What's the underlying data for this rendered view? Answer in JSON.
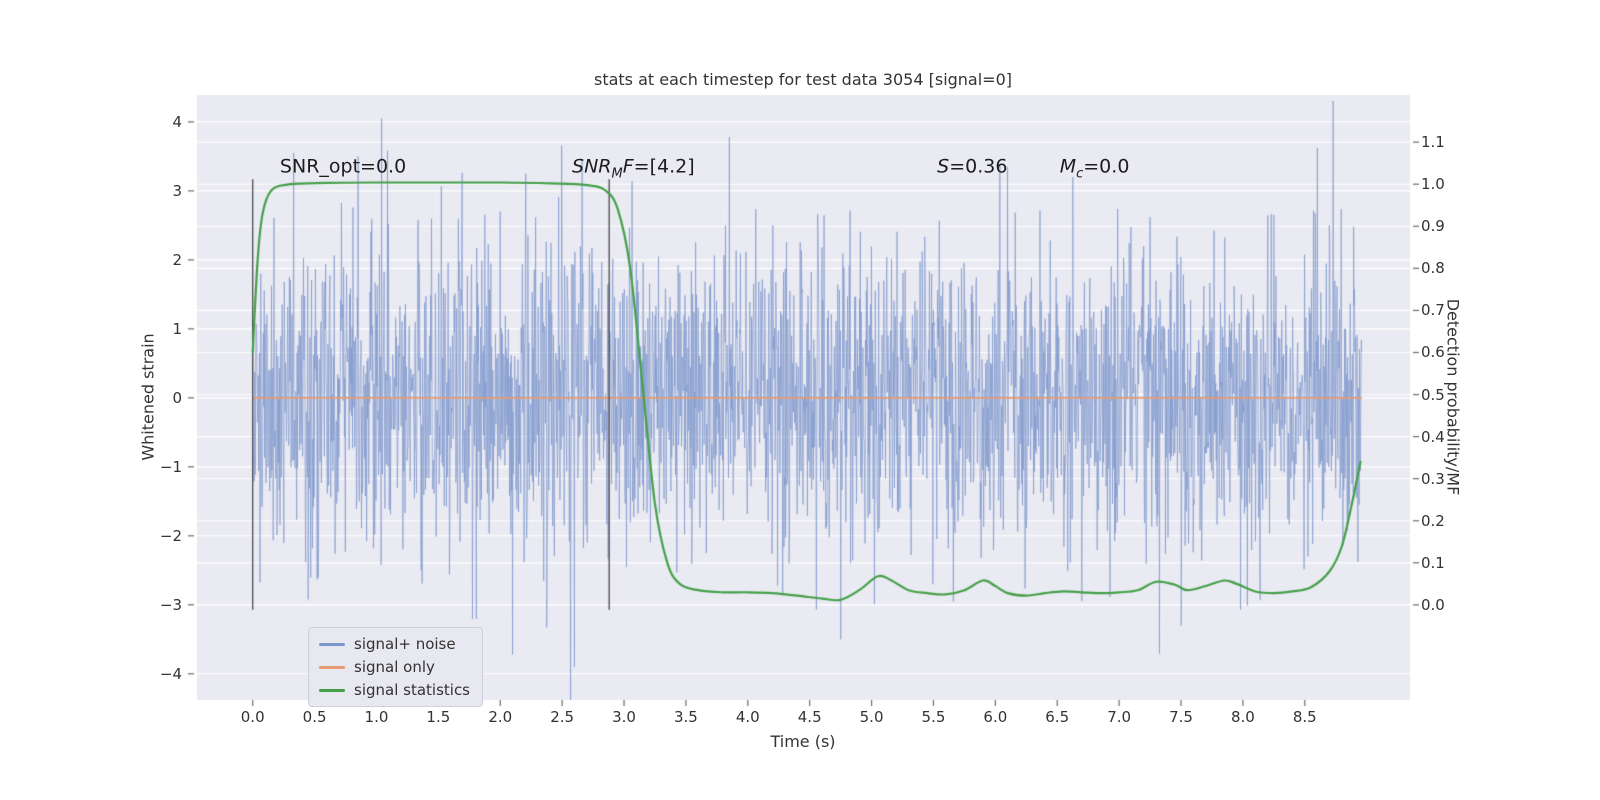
{
  "chart_data": {
    "type": "line",
    "title": "stats at each timestep for test data 3054 [signal=0]",
    "xlabel": "Time (s)",
    "ylabel_left": "Whitened strain",
    "ylabel_right": "Detection probability/MF",
    "background": "#eaeaf2",
    "grid_color": "#ffffff",
    "tick_color": "#6b6b6b",
    "text_color": "#333333",
    "grid": true,
    "xlim": [
      -0.45,
      9.35
    ],
    "ylim_left": [
      -4.38,
      4.39
    ],
    "ylim_right": [
      -0.226,
      1.212
    ],
    "x_ticks": {
      "values": [
        0.0,
        0.5,
        1.0,
        1.5,
        2.0,
        2.5,
        3.0,
        3.5,
        4.0,
        4.5,
        5.0,
        5.5,
        6.0,
        6.5,
        7.0,
        7.5,
        8.0,
        8.5
      ],
      "labels": [
        "0.0",
        "0.5",
        "1.0",
        "1.5",
        "2.0",
        "2.5",
        "3.0",
        "3.5",
        "4.0",
        "4.5",
        "5.0",
        "5.5",
        "6.0",
        "6.5",
        "7.0",
        "7.5",
        "8.0",
        "8.5"
      ]
    },
    "y_ticks_left": {
      "values": [
        4,
        3,
        2,
        1,
        0,
        -1,
        -2,
        -3,
        -4
      ],
      "labels": [
        "4",
        "3",
        "2",
        "1",
        "0",
        "−1",
        "−2",
        "−3",
        "−4"
      ]
    },
    "y_ticks_right": {
      "values": [
        1.1,
        1.0,
        0.9,
        0.8,
        0.7,
        0.6,
        0.5,
        0.4,
        0.3,
        0.2,
        0.1,
        0.0
      ],
      "labels": [
        "1.1",
        "1.0",
        "0.9",
        "0.8",
        "0.7",
        "0.6",
        "0.5",
        "0.4",
        "0.3",
        "0.2",
        "0.1",
        "0.0"
      ]
    },
    "vlines": {
      "x": [
        0.0,
        2.88
      ],
      "y_min": -3.07,
      "y_max": 3.17,
      "color": "#4b4b4b"
    },
    "series": [
      {
        "name": "signal+ noise",
        "kind": "noise",
        "axis": "left",
        "color": "#7d97cc",
        "opacity": 0.75,
        "n": 2600,
        "mean": 0.0,
        "std": 1.12,
        "seed": 1337,
        "t_start": 0.0,
        "t_end": 8.96,
        "spikes": [
          [
            0.33,
            3.55
          ],
          [
            0.85,
            3.5
          ],
          [
            1.04,
            4.05
          ],
          [
            2.1,
            -3.72
          ],
          [
            2.6,
            -3.9
          ],
          [
            2.66,
            3.45
          ],
          [
            3.85,
            3.78
          ],
          [
            4.75,
            -3.5
          ],
          [
            6.1,
            3.35
          ],
          [
            7.5,
            -3.3
          ],
          [
            8.6,
            3.62
          ]
        ]
      },
      {
        "name": "signal only",
        "kind": "constant",
        "axis": "left",
        "color": "#e59b72",
        "value": 0.0,
        "t_start": 0.0,
        "t_end": 8.96
      },
      {
        "name": "signal statistics",
        "kind": "curve",
        "axis": "right",
        "color": "#44a049",
        "points": [
          [
            0.0,
            0.6
          ],
          [
            0.04,
            0.82
          ],
          [
            0.08,
            0.93
          ],
          [
            0.15,
            0.985
          ],
          [
            0.3,
            1.0
          ],
          [
            0.6,
            1.003
          ],
          [
            1.0,
            1.004
          ],
          [
            1.5,
            1.004
          ],
          [
            2.0,
            1.004
          ],
          [
            2.4,
            1.002
          ],
          [
            2.7,
            0.998
          ],
          [
            2.85,
            0.985
          ],
          [
            2.95,
            0.94
          ],
          [
            3.05,
            0.8
          ],
          [
            3.15,
            0.52
          ],
          [
            3.25,
            0.24
          ],
          [
            3.35,
            0.1
          ],
          [
            3.45,
            0.05
          ],
          [
            3.6,
            0.035
          ],
          [
            3.8,
            0.03
          ],
          [
            4.0,
            0.03
          ],
          [
            4.2,
            0.028
          ],
          [
            4.4,
            0.022
          ],
          [
            4.6,
            0.015
          ],
          [
            4.75,
            0.012
          ],
          [
            4.9,
            0.035
          ],
          [
            5.05,
            0.068
          ],
          [
            5.15,
            0.06
          ],
          [
            5.3,
            0.035
          ],
          [
            5.45,
            0.028
          ],
          [
            5.6,
            0.025
          ],
          [
            5.75,
            0.035
          ],
          [
            5.9,
            0.058
          ],
          [
            6.0,
            0.045
          ],
          [
            6.1,
            0.028
          ],
          [
            6.25,
            0.022
          ],
          [
            6.4,
            0.028
          ],
          [
            6.55,
            0.032
          ],
          [
            6.7,
            0.03
          ],
          [
            6.85,
            0.028
          ],
          [
            7.0,
            0.03
          ],
          [
            7.15,
            0.035
          ],
          [
            7.3,
            0.055
          ],
          [
            7.45,
            0.048
          ],
          [
            7.55,
            0.035
          ],
          [
            7.7,
            0.045
          ],
          [
            7.85,
            0.058
          ],
          [
            7.95,
            0.05
          ],
          [
            8.1,
            0.032
          ],
          [
            8.25,
            0.028
          ],
          [
            8.4,
            0.032
          ],
          [
            8.55,
            0.042
          ],
          [
            8.7,
            0.08
          ],
          [
            8.8,
            0.14
          ],
          [
            8.88,
            0.24
          ],
          [
            8.95,
            0.34
          ]
        ]
      }
    ],
    "annotations": [
      {
        "pre": "SNR_opt=0.0",
        "sub": "",
        "mid": "",
        "post": "",
        "x": 0.22,
        "y": 3.3
      },
      {
        "pre": "SNR",
        "sub": "M",
        "mid": "F",
        "post": "=[4.2]",
        "x": 2.58,
        "y": 3.3
      },
      {
        "pre": "S",
        "sub": "",
        "mid": "",
        "post": "=0.36",
        "x": 5.53,
        "y": 3.3
      },
      {
        "pre": "M",
        "sub": "c",
        "mid": "",
        "post": "=0.0",
        "x": 6.52,
        "y": 3.3
      }
    ],
    "legend": {
      "position": "lower left",
      "entries": [
        {
          "label": "signal+ noise",
          "color": "#7d97cc"
        },
        {
          "label": "signal only",
          "color": "#e59b72"
        },
        {
          "label": "signal statistics",
          "color": "#44a049"
        }
      ]
    }
  }
}
